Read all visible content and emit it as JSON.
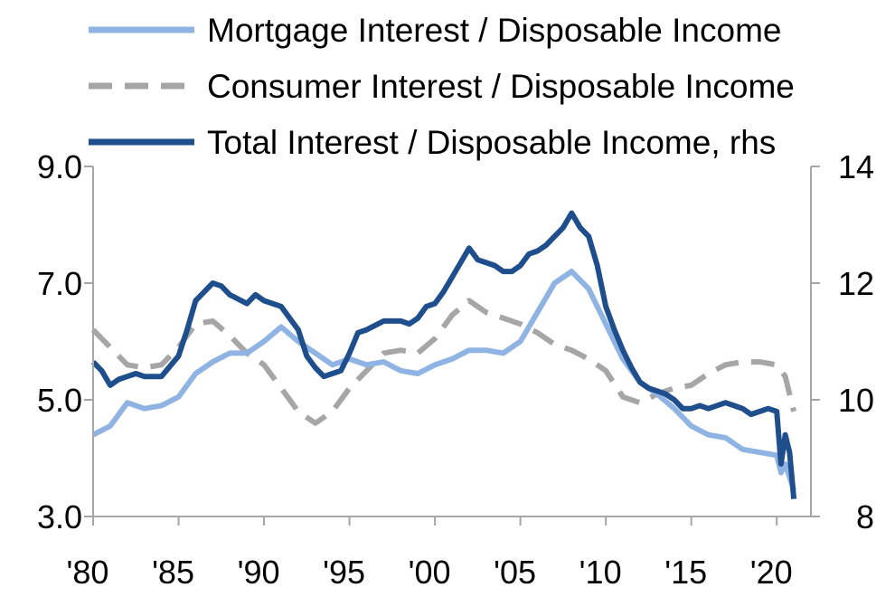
{
  "chart_data": {
    "type": "line",
    "title": "",
    "xlabel": "",
    "ylabel": "",
    "y2label": "",
    "x_ticks": [
      "'80",
      "'85",
      "'90",
      "'95",
      "'00",
      "'05",
      "'10",
      "'15",
      "'20"
    ],
    "x_tick_values": [
      1980,
      1985,
      1990,
      1995,
      2000,
      2005,
      2010,
      2015,
      2020
    ],
    "xlim": [
      1980,
      2022
    ],
    "y_ticks": [
      "3.0",
      "5.0",
      "7.0",
      "9.0"
    ],
    "y_tick_values": [
      3,
      5,
      7,
      9
    ],
    "ylim": [
      3,
      9
    ],
    "y2_ticks": [
      "8",
      "10",
      "12",
      "14"
    ],
    "y2_tick_values": [
      8,
      10,
      12,
      14
    ],
    "y2lim": [
      8,
      14
    ],
    "grid": false,
    "legend_position": "top",
    "series": [
      {
        "name": "Mortgage  Interest / Disposable Income",
        "axis": "left",
        "color": "#8fb3e3",
        "style": "solid",
        "points": [
          [
            1980.0,
            4.4
          ],
          [
            1981.0,
            4.55
          ],
          [
            1982.0,
            4.95
          ],
          [
            1983.0,
            4.85
          ],
          [
            1984.0,
            4.9
          ],
          [
            1985.0,
            5.05
          ],
          [
            1986.0,
            5.45
          ],
          [
            1987.0,
            5.65
          ],
          [
            1988.0,
            5.8
          ],
          [
            1989.0,
            5.8
          ],
          [
            1990.0,
            6.0
          ],
          [
            1991.0,
            6.25
          ],
          [
            1992.0,
            6.0
          ],
          [
            1993.0,
            5.8
          ],
          [
            1994.0,
            5.6
          ],
          [
            1995.0,
            5.7
          ],
          [
            1996.0,
            5.6
          ],
          [
            1997.0,
            5.65
          ],
          [
            1998.0,
            5.5
          ],
          [
            1999.0,
            5.45
          ],
          [
            2000.0,
            5.6
          ],
          [
            2001.0,
            5.7
          ],
          [
            2002.0,
            5.85
          ],
          [
            2003.0,
            5.85
          ],
          [
            2004.0,
            5.8
          ],
          [
            2005.0,
            6.0
          ],
          [
            2006.0,
            6.5
          ],
          [
            2007.0,
            7.0
          ],
          [
            2008.0,
            7.2
          ],
          [
            2009.0,
            6.9
          ],
          [
            2010.0,
            6.3
          ],
          [
            2011.0,
            5.7
          ],
          [
            2012.0,
            5.3
          ],
          [
            2013.0,
            5.1
          ],
          [
            2014.0,
            4.85
          ],
          [
            2015.0,
            4.55
          ],
          [
            2016.0,
            4.4
          ],
          [
            2017.0,
            4.35
          ],
          [
            2018.0,
            4.15
          ],
          [
            2019.0,
            4.1
          ],
          [
            2020.0,
            4.05
          ],
          [
            2020.25,
            3.75
          ],
          [
            2020.5,
            3.9
          ],
          [
            2021.0,
            3.45
          ]
        ]
      },
      {
        "name": "Consumer  Interest / Disposable Income",
        "axis": "left",
        "color": "#a6a6a6",
        "style": "dashed",
        "points": [
          [
            1980.0,
            6.2
          ],
          [
            1981.0,
            5.9
          ],
          [
            1982.0,
            5.6
          ],
          [
            1983.0,
            5.55
          ],
          [
            1984.0,
            5.6
          ],
          [
            1985.0,
            5.9
          ],
          [
            1986.0,
            6.3
          ],
          [
            1987.0,
            6.35
          ],
          [
            1988.0,
            6.1
          ],
          [
            1989.0,
            5.8
          ],
          [
            1990.0,
            5.6
          ],
          [
            1991.0,
            5.2
          ],
          [
            1992.0,
            4.8
          ],
          [
            1993.0,
            4.6
          ],
          [
            1994.0,
            4.8
          ],
          [
            1995.0,
            5.2
          ],
          [
            1996.0,
            5.5
          ],
          [
            1997.0,
            5.8
          ],
          [
            1998.0,
            5.85
          ],
          [
            1999.0,
            5.8
          ],
          [
            2000.0,
            6.05
          ],
          [
            2001.0,
            6.45
          ],
          [
            2002.0,
            6.7
          ],
          [
            2003.0,
            6.5
          ],
          [
            2004.0,
            6.4
          ],
          [
            2005.0,
            6.3
          ],
          [
            2006.0,
            6.15
          ],
          [
            2007.0,
            5.95
          ],
          [
            2008.0,
            5.85
          ],
          [
            2009.0,
            5.7
          ],
          [
            2010.0,
            5.5
          ],
          [
            2011.0,
            5.05
          ],
          [
            2012.0,
            4.95
          ],
          [
            2013.0,
            5.1
          ],
          [
            2014.0,
            5.2
          ],
          [
            2015.0,
            5.25
          ],
          [
            2016.0,
            5.45
          ],
          [
            2017.0,
            5.6
          ],
          [
            2018.0,
            5.65
          ],
          [
            2019.0,
            5.65
          ],
          [
            2020.0,
            5.6
          ],
          [
            2020.5,
            5.4
          ],
          [
            2021.0,
            4.8
          ]
        ]
      },
      {
        "name": "Total Interest / Disposable Income, rhs",
        "axis": "right",
        "color": "#1f4e8c",
        "style": "solid",
        "points": [
          [
            1980.0,
            10.65
          ],
          [
            1980.5,
            10.5
          ],
          [
            1981.0,
            10.25
          ],
          [
            1981.5,
            10.35
          ],
          [
            1982.0,
            10.4
          ],
          [
            1982.5,
            10.45
          ],
          [
            1983.0,
            10.4
          ],
          [
            1984.0,
            10.4
          ],
          [
            1985.0,
            10.75
          ],
          [
            1985.5,
            11.2
          ],
          [
            1986.0,
            11.7
          ],
          [
            1986.5,
            11.85
          ],
          [
            1987.0,
            12.0
          ],
          [
            1987.5,
            11.95
          ],
          [
            1988.0,
            11.8
          ],
          [
            1989.0,
            11.65
          ],
          [
            1989.5,
            11.8
          ],
          [
            1990.0,
            11.7
          ],
          [
            1991.0,
            11.6
          ],
          [
            1991.5,
            11.4
          ],
          [
            1992.0,
            11.2
          ],
          [
            1992.5,
            10.75
          ],
          [
            1993.0,
            10.55
          ],
          [
            1993.5,
            10.4
          ],
          [
            1994.0,
            10.45
          ],
          [
            1994.5,
            10.5
          ],
          [
            1995.0,
            10.8
          ],
          [
            1995.5,
            11.15
          ],
          [
            1996.0,
            11.2
          ],
          [
            1997.0,
            11.35
          ],
          [
            1998.0,
            11.35
          ],
          [
            1998.5,
            11.3
          ],
          [
            1999.0,
            11.4
          ],
          [
            1999.5,
            11.6
          ],
          [
            2000.0,
            11.65
          ],
          [
            2000.5,
            11.85
          ],
          [
            2001.0,
            12.1
          ],
          [
            2001.5,
            12.35
          ],
          [
            2002.0,
            12.6
          ],
          [
            2002.5,
            12.4
          ],
          [
            2003.0,
            12.35
          ],
          [
            2003.5,
            12.3
          ],
          [
            2004.0,
            12.2
          ],
          [
            2004.5,
            12.2
          ],
          [
            2005.0,
            12.3
          ],
          [
            2005.5,
            12.5
          ],
          [
            2006.0,
            12.55
          ],
          [
            2006.5,
            12.65
          ],
          [
            2007.0,
            12.8
          ],
          [
            2007.5,
            12.95
          ],
          [
            2008.0,
            13.2
          ],
          [
            2008.5,
            12.95
          ],
          [
            2009.0,
            12.8
          ],
          [
            2009.5,
            12.3
          ],
          [
            2010.0,
            11.6
          ],
          [
            2010.5,
            11.2
          ],
          [
            2011.0,
            10.85
          ],
          [
            2011.5,
            10.55
          ],
          [
            2012.0,
            10.3
          ],
          [
            2012.5,
            10.2
          ],
          [
            2013.0,
            10.15
          ],
          [
            2013.5,
            10.1
          ],
          [
            2014.0,
            10.0
          ],
          [
            2014.5,
            9.85
          ],
          [
            2015.0,
            9.85
          ],
          [
            2015.5,
            9.9
          ],
          [
            2016.0,
            9.85
          ],
          [
            2016.5,
            9.9
          ],
          [
            2017.0,
            9.95
          ],
          [
            2017.5,
            9.9
          ],
          [
            2018.0,
            9.85
          ],
          [
            2018.5,
            9.75
          ],
          [
            2019.0,
            9.8
          ],
          [
            2019.5,
            9.85
          ],
          [
            2020.0,
            9.8
          ],
          [
            2020.25,
            8.9
          ],
          [
            2020.5,
            9.4
          ],
          [
            2020.75,
            9.1
          ],
          [
            2021.0,
            8.3
          ]
        ]
      }
    ]
  }
}
